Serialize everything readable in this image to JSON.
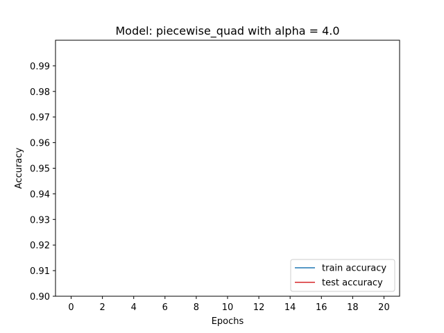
{
  "chart_data": {
    "type": "line",
    "title": "Model: piecewise_quad with alpha = 4.0",
    "xlabel": "Epochs",
    "ylabel": "Accuracy",
    "xlim": [
      -1,
      21
    ],
    "ylim": [
      0.9,
      1.0
    ],
    "x_ticks": [
      0,
      2,
      4,
      6,
      8,
      10,
      12,
      14,
      16,
      18,
      20
    ],
    "y_ticks": [
      0.9,
      0.91,
      0.92,
      0.93,
      0.94,
      0.95,
      0.96,
      0.97,
      0.98,
      0.99
    ],
    "y_tick_labels": [
      "0.90",
      "0.91",
      "0.92",
      "0.93",
      "0.94",
      "0.95",
      "0.96",
      "0.97",
      "0.98",
      "0.99"
    ],
    "grid": false,
    "legend_position": "lower-right",
    "series": [
      {
        "name": "train accuracy",
        "color": "#1f77b4",
        "x": [],
        "y": []
      },
      {
        "name": "test accuracy",
        "color": "#d62728",
        "x": [],
        "y": []
      }
    ]
  }
}
